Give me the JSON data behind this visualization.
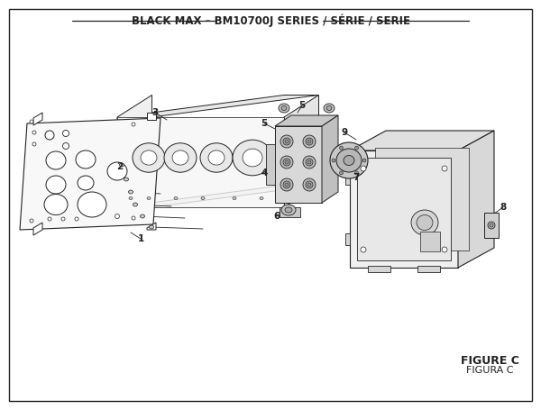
{
  "title": "BLACK MAX – BM10700J SERIES / SÉRIE / SERIE",
  "figure_label": "FIGURE C",
  "figura_label": "FIGURA C",
  "bg_color": "#ffffff",
  "line_color": "#222222",
  "title_fontsize": 8.5,
  "figure_fontsize": 9
}
